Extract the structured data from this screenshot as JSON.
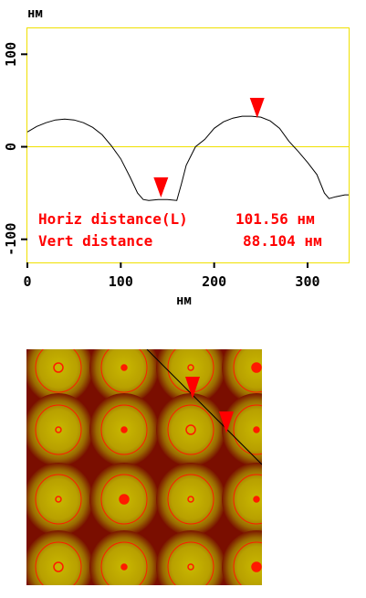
{
  "chart_data": {
    "type": "line",
    "x_unit": "нм",
    "y_unit": "нм",
    "xlim": [
      0,
      344
    ],
    "ylim": [
      -125,
      128
    ],
    "x_ticks": [
      0,
      100,
      200,
      300
    ],
    "x_tick_labels": [
      "0",
      "100",
      "200",
      "300"
    ],
    "y_ticks": [
      -100,
      0,
      100
    ],
    "y_tick_labels": [
      "-100",
      "0",
      "100"
    ],
    "zero_line": 0,
    "series": [
      {
        "x": [
          0,
          10,
          20,
          30,
          40,
          50,
          60,
          70,
          80,
          90,
          100,
          110,
          118,
          124,
          130,
          140,
          150,
          160,
          165,
          170,
          175,
          180,
          190,
          200,
          210,
          220,
          230,
          240,
          250,
          260,
          270,
          280,
          290,
          300,
          310,
          318,
          323,
          330,
          340,
          344
        ],
        "y": [
          16,
          22,
          26,
          29,
          30,
          29,
          26,
          21,
          13,
          1,
          -13,
          -33,
          -50,
          -57,
          -58,
          -57,
          -57,
          -58,
          -40,
          -20,
          -10,
          0,
          8,
          20,
          27,
          31,
          33,
          33,
          32,
          28,
          20,
          6,
          -5,
          -17,
          -30,
          -50,
          -56,
          -54,
          -52,
          -52
        ]
      }
    ],
    "markers": [
      {
        "x": 143,
        "y": -44,
        "shape": "triangle-down",
        "color": "#ff0000"
      },
      {
        "x": 246,
        "y": 42,
        "shape": "triangle-down",
        "color": "#ff0000"
      }
    ],
    "readouts": [
      {
        "label": "Horiz distance(L)",
        "value": "101.56 нм"
      },
      {
        "label": "Vert distance",
        "value": "88.104 нм"
      }
    ]
  },
  "image_panel": {
    "colors": {
      "background": "#7a0e00",
      "dome": "#c8b400",
      "contour": "#ff1a00",
      "line": "#000000",
      "marker": "#ff0000"
    },
    "marker_shape": "triangle-down"
  }
}
